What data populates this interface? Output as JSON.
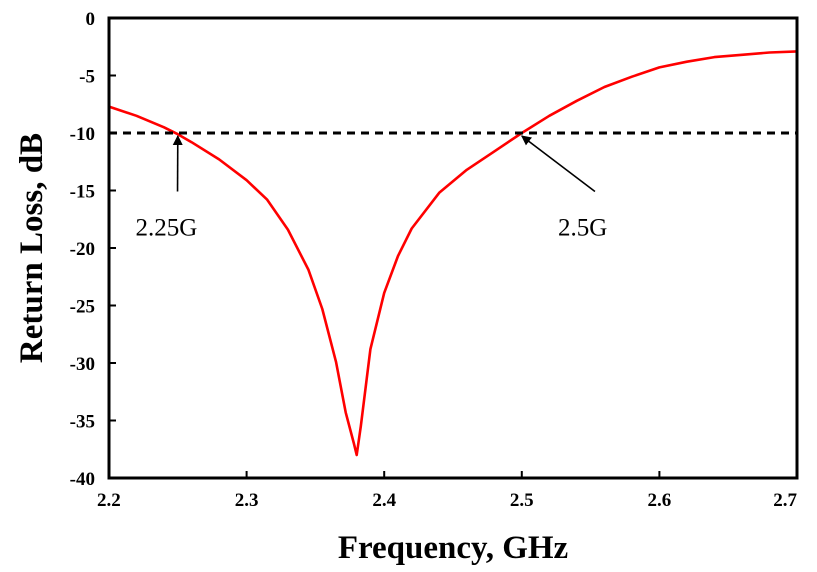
{
  "chart_data": {
    "type": "line",
    "title": "",
    "xlabel": "Frequency, GHz",
    "ylabel": "Return Loss, dB",
    "xlim": [
      2.2,
      2.7
    ],
    "ylim": [
      -40,
      0
    ],
    "x_ticks": [
      "2.2",
      "2.3",
      "2.4",
      "2.5",
      "2.6",
      "2.7"
    ],
    "y_ticks": [
      "0",
      "-5",
      "-10",
      "-15",
      "-20",
      "-25",
      "-30",
      "-35",
      "-40"
    ],
    "grid": false,
    "legend": "none",
    "series": [
      {
        "color": "#ff0000",
        "x": [
          2.2,
          2.22,
          2.24,
          2.25,
          2.26,
          2.28,
          2.3,
          2.315,
          2.33,
          2.345,
          2.355,
          2.365,
          2.372,
          2.378,
          2.38,
          2.383,
          2.39,
          2.4,
          2.41,
          2.42,
          2.44,
          2.46,
          2.48,
          2.5,
          2.52,
          2.54,
          2.56,
          2.58,
          2.6,
          2.62,
          2.64,
          2.66,
          2.68,
          2.7
        ],
        "y": [
          -7.7,
          -8.5,
          -9.5,
          -10.1,
          -10.8,
          -12.3,
          -14.1,
          -15.8,
          -18.4,
          -21.9,
          -25.3,
          -29.9,
          -34.3,
          -37.0,
          -38.0,
          -35.5,
          -28.8,
          -23.9,
          -20.7,
          -18.3,
          -15.2,
          -13.2,
          -11.6,
          -10.0,
          -8.5,
          -7.2,
          -6.0,
          -5.1,
          -4.3,
          -3.8,
          -3.4,
          -3.2,
          -3.0,
          -2.9
        ]
      },
      {
        "color": "#000000",
        "dash": "dashed",
        "x": [
          2.2,
          2.7
        ],
        "y": [
          -10,
          -10
        ]
      }
    ],
    "annotations": [
      {
        "text": "2.25G",
        "point_x": 2.25,
        "point_y": -10,
        "label_x": 2.228,
        "label_y": -17.0
      },
      {
        "text": "2.5G",
        "point_x": 2.5,
        "point_y": -10,
        "label_x": 2.535,
        "label_y": -17.0
      }
    ]
  }
}
